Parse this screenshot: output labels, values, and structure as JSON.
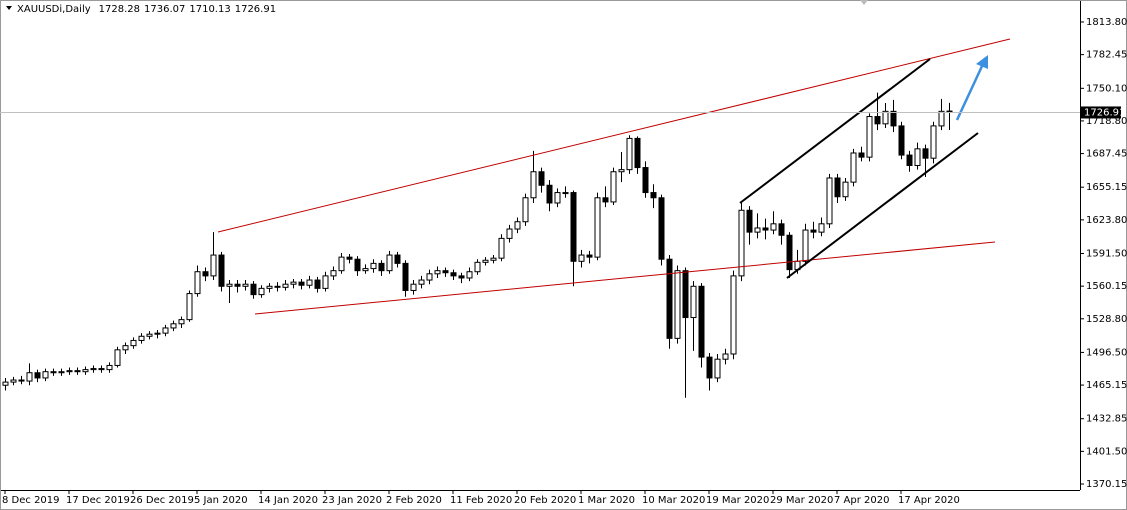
{
  "chart_data": {
    "type": "candlestick",
    "title": "XAUUSDi,Daily",
    "ylim": [
      1364.4,
      1834.9
    ],
    "yticks": [
      {
        "value": 1813.8,
        "label": "1813.80"
      },
      {
        "value": 1782.45,
        "label": "1782.45"
      },
      {
        "value": 1750.1,
        "label": "1750.10"
      },
      {
        "value": 1718.8,
        "label": "1718.80"
      },
      {
        "value": 1687.45,
        "label": "1687.45"
      },
      {
        "value": 1655.15,
        "label": "1655.15"
      },
      {
        "value": 1623.8,
        "label": "1623.80"
      },
      {
        "value": 1591.5,
        "label": "1591.50"
      },
      {
        "value": 1560.15,
        "label": "1560.15"
      },
      {
        "value": 1528.8,
        "label": "1528.80"
      },
      {
        "value": 1496.5,
        "label": "1496.50"
      },
      {
        "value": 1465.15,
        "label": "1465.15"
      },
      {
        "value": 1432.85,
        "label": "1432.85"
      },
      {
        "value": 1401.5,
        "label": "1401.50"
      },
      {
        "value": 1370.15,
        "label": "1370.15"
      }
    ],
    "categories": [
      "8 Dec 2019",
      null,
      null,
      null,
      null,
      null,
      null,
      null,
      "17 Dec 2019",
      null,
      null,
      null,
      null,
      null,
      null,
      null,
      "26 Dec 2019",
      null,
      null,
      null,
      null,
      null,
      null,
      null,
      "5 Jan 2020",
      null,
      null,
      null,
      null,
      null,
      null,
      null,
      "14 Jan 2020",
      null,
      null,
      null,
      null,
      null,
      null,
      null,
      "23 Jan 2020",
      null,
      null,
      null,
      null,
      null,
      null,
      null,
      "2 Feb 2020",
      null,
      null,
      null,
      null,
      null,
      null,
      null,
      "11 Feb 2020",
      null,
      null,
      null,
      null,
      null,
      null,
      null,
      "20 Feb 2020",
      null,
      null,
      null,
      null,
      null,
      null,
      null,
      "1 Mar 2020",
      null,
      null,
      null,
      null,
      null,
      null,
      null,
      "10 Mar 2020",
      null,
      null,
      null,
      null,
      null,
      null,
      null,
      "19 Mar 2020",
      null,
      null,
      null,
      null,
      null,
      null,
      null,
      "29 Mar 2020",
      null,
      null,
      null,
      null,
      null,
      null,
      null,
      "7 Apr 2020",
      null,
      null,
      null,
      null,
      null,
      null,
      null,
      "17 Apr 2020",
      null,
      null,
      null,
      null,
      null,
      null
    ],
    "candles": [
      [
        1465,
        1472,
        1460,
        1468
      ],
      [
        1468,
        1473,
        1465,
        1470
      ],
      [
        1470,
        1474,
        1466,
        1469
      ],
      [
        1469,
        1486,
        1465,
        1477
      ],
      [
        1477,
        1480,
        1468,
        1472
      ],
      [
        1472,
        1481,
        1469,
        1478
      ],
      [
        1478,
        1481,
        1474,
        1477
      ],
      [
        1477,
        1481,
        1474,
        1478
      ],
      [
        1478,
        1482,
        1475,
        1479
      ],
      [
        1479,
        1482,
        1475,
        1478
      ],
      [
        1478,
        1483,
        1475,
        1480
      ],
      [
        1480,
        1484,
        1477,
        1481
      ],
      [
        1481,
        1484,
        1477,
        1480
      ],
      [
        1480,
        1487,
        1477,
        1484
      ],
      [
        1484,
        1502,
        1482,
        1499
      ],
      [
        1499,
        1506,
        1495,
        1503
      ],
      [
        1503,
        1511,
        1500,
        1508
      ],
      [
        1508,
        1515,
        1505,
        1512
      ],
      [
        1512,
        1517,
        1509,
        1514
      ],
      [
        1514,
        1518,
        1510,
        1515
      ],
      [
        1515,
        1523,
        1512,
        1520
      ],
      [
        1520,
        1527,
        1517,
        1524
      ],
      [
        1524,
        1531,
        1520,
        1528
      ],
      [
        1528,
        1556,
        1526,
        1553
      ],
      [
        1553,
        1580,
        1550,
        1574
      ],
      [
        1574,
        1578,
        1565,
        1570
      ],
      [
        1570,
        1612,
        1566,
        1590
      ],
      [
        1590,
        1593,
        1555,
        1560
      ],
      [
        1560,
        1566,
        1544,
        1562
      ],
      [
        1562,
        1566,
        1554,
        1560
      ],
      [
        1560,
        1566,
        1556,
        1562
      ],
      [
        1562,
        1565,
        1548,
        1552
      ],
      [
        1552,
        1561,
        1549,
        1558
      ],
      [
        1558,
        1563,
        1554,
        1560
      ],
      [
        1560,
        1564,
        1555,
        1559
      ],
      [
        1559,
        1566,
        1556,
        1562
      ],
      [
        1562,
        1567,
        1558,
        1564
      ],
      [
        1564,
        1567,
        1557,
        1561
      ],
      [
        1561,
        1570,
        1558,
        1566
      ],
      [
        1566,
        1569,
        1554,
        1558
      ],
      [
        1558,
        1574,
        1555,
        1570
      ],
      [
        1570,
        1579,
        1566,
        1575
      ],
      [
        1575,
        1592,
        1572,
        1588
      ],
      [
        1588,
        1591,
        1582,
        1586
      ],
      [
        1586,
        1589,
        1570,
        1575
      ],
      [
        1575,
        1581,
        1572,
        1577
      ],
      [
        1577,
        1586,
        1573,
        1582
      ],
      [
        1582,
        1585,
        1570,
        1575
      ],
      [
        1575,
        1594,
        1572,
        1590
      ],
      [
        1590,
        1593,
        1578,
        1582
      ],
      [
        1582,
        1585,
        1550,
        1556
      ],
      [
        1556,
        1566,
        1552,
        1562
      ],
      [
        1562,
        1570,
        1558,
        1566
      ],
      [
        1566,
        1576,
        1562,
        1572
      ],
      [
        1572,
        1579,
        1568,
        1575
      ],
      [
        1575,
        1578,
        1569,
        1573
      ],
      [
        1573,
        1576,
        1566,
        1570
      ],
      [
        1570,
        1573,
        1563,
        1568
      ],
      [
        1568,
        1578,
        1565,
        1574
      ],
      [
        1574,
        1586,
        1571,
        1583
      ],
      [
        1583,
        1588,
        1580,
        1585
      ],
      [
        1585,
        1590,
        1582,
        1587
      ],
      [
        1587,
        1610,
        1584,
        1606
      ],
      [
        1606,
        1619,
        1602,
        1615
      ],
      [
        1615,
        1626,
        1611,
        1622
      ],
      [
        1622,
        1649,
        1618,
        1645
      ],
      [
        1645,
        1690,
        1640,
        1670
      ],
      [
        1670,
        1674,
        1650,
        1657
      ],
      [
        1657,
        1662,
        1632,
        1640
      ],
      [
        1640,
        1654,
        1636,
        1650
      ],
      [
        1650,
        1656,
        1645,
        1650
      ],
      [
        1650,
        1652,
        1560,
        1584
      ],
      [
        1584,
        1595,
        1578,
        1590
      ],
      [
        1590,
        1594,
        1582,
        1588
      ],
      [
        1588,
        1650,
        1585,
        1645
      ],
      [
        1645,
        1656,
        1636,
        1641
      ],
      [
        1641,
        1674,
        1638,
        1670
      ],
      [
        1670,
        1689,
        1660,
        1672
      ],
      [
        1672,
        1705,
        1668,
        1702
      ],
      [
        1702,
        1704,
        1668,
        1674
      ],
      [
        1674,
        1680,
        1645,
        1650
      ],
      [
        1650,
        1658,
        1635,
        1645
      ],
      [
        1645,
        1648,
        1580,
        1586
      ],
      [
        1586,
        1590,
        1500,
        1510
      ],
      [
        1510,
        1580,
        1505,
        1575
      ],
      [
        1575,
        1578,
        1453,
        1530
      ],
      [
        1530,
        1565,
        1498,
        1560
      ],
      [
        1560,
        1563,
        1482,
        1492
      ],
      [
        1492,
        1496,
        1460,
        1472
      ],
      [
        1472,
        1495,
        1468,
        1490
      ],
      [
        1490,
        1500,
        1485,
        1495
      ],
      [
        1495,
        1575,
        1490,
        1570
      ],
      [
        1570,
        1640,
        1565,
        1633
      ],
      [
        1633,
        1637,
        1600,
        1612
      ],
      [
        1612,
        1630,
        1606,
        1616
      ],
      [
        1616,
        1625,
        1605,
        1614
      ],
      [
        1614,
        1632,
        1610,
        1620
      ],
      [
        1620,
        1624,
        1600,
        1609
      ],
      [
        1609,
        1612,
        1568,
        1576
      ],
      [
        1576,
        1595,
        1572,
        1584
      ],
      [
        1584,
        1620,
        1580,
        1614
      ],
      [
        1614,
        1622,
        1606,
        1612
      ],
      [
        1612,
        1626,
        1608,
        1620
      ],
      [
        1620,
        1668,
        1616,
        1664
      ],
      [
        1664,
        1668,
        1640,
        1646
      ],
      [
        1646,
        1664,
        1642,
        1660
      ],
      [
        1660,
        1692,
        1656,
        1688
      ],
      [
        1688,
        1694,
        1680,
        1684
      ],
      [
        1684,
        1726,
        1680,
        1723
      ],
      [
        1723,
        1746,
        1710,
        1716
      ],
      [
        1716,
        1736,
        1712,
        1728
      ],
      [
        1728,
        1739,
        1708,
        1714
      ],
      [
        1714,
        1718,
        1682,
        1686
      ],
      [
        1686,
        1690,
        1670,
        1676
      ],
      [
        1676,
        1698,
        1672,
        1692
      ],
      [
        1692,
        1696,
        1665,
        1683
      ],
      [
        1683,
        1718,
        1678,
        1714
      ],
      [
        1714,
        1740,
        1710,
        1728
      ],
      [
        1728.28,
        1736.07,
        1710.13,
        1726.91
      ]
    ]
  }
}
